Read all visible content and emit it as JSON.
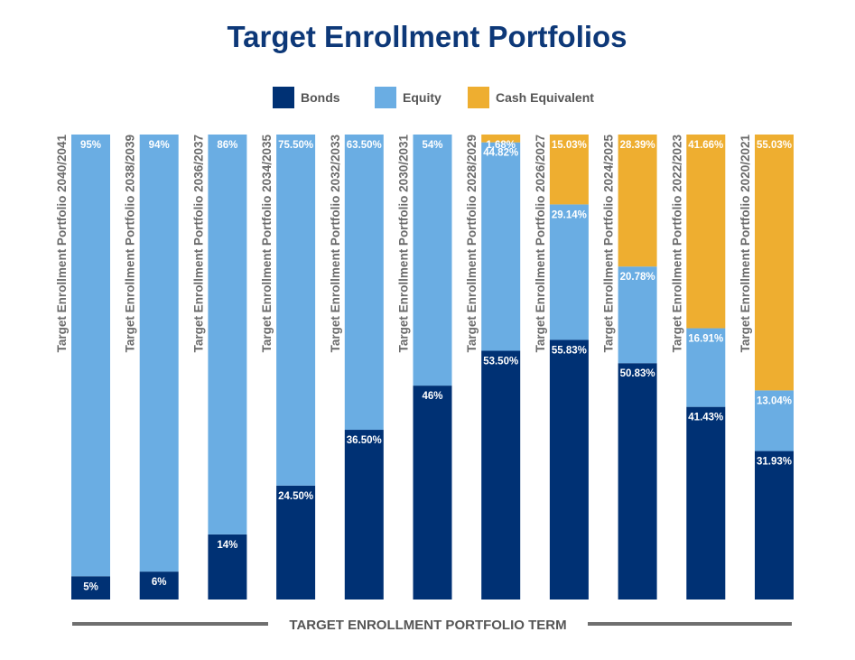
{
  "chart_data": {
    "type": "bar",
    "stacked": true,
    "title": "Target Enrollment Portfolios",
    "xlabel": "TARGET ENROLLMENT PORTFOLIO TERM",
    "ylim": [
      0,
      100
    ],
    "legend_position": "top",
    "categories": [
      "Target Enrollment Portfolio 2040/2041",
      "Target Enrollment Portfolio 2038/2039",
      "Target Enrollment Portfolio 2036/2037",
      "Target Enrollment Portfolio 2034/2035",
      "Target Enrollment Portfolio 2032/2033",
      "Target Enrollment Portfolio 2030/2031",
      "Target Enrollment Portfolio 2028/2029",
      "Target Enrollment Portfolio 2026/2027",
      "Target Enrollment Portfolio 2024/2025",
      "Target Enrollment Portfolio 2022/2023",
      "Target Enrollment Portfolio 2020/2021"
    ],
    "series": [
      {
        "name": "Bonds",
        "color": "#003174",
        "values": [
          5,
          6,
          14,
          24.5,
          36.5,
          46,
          53.5,
          55.83,
          50.83,
          41.43,
          31.93
        ],
        "labels": [
          "5%",
          "6%",
          "14%",
          "24.50%",
          "36.50%",
          "46%",
          "53.50%",
          "55.83%",
          "50.83%",
          "41.43%",
          "31.93%"
        ]
      },
      {
        "name": "Equity",
        "color": "#6aade3",
        "values": [
          95,
          94,
          86,
          75.5,
          63.5,
          54,
          44.82,
          29.14,
          20.78,
          16.91,
          13.04
        ],
        "labels": [
          "95%",
          "94%",
          "86%",
          "75.50%",
          "63.50%",
          "54%",
          "44.82%",
          "29.14%",
          "20.78%",
          "16.91%",
          "13.04%"
        ]
      },
      {
        "name": "Cash Equivalent",
        "color": "#eeae30",
        "values": [
          0,
          0,
          0,
          0,
          0,
          0,
          1.68,
          15.03,
          28.39,
          41.66,
          55.03
        ],
        "labels": [
          "",
          "",
          "",
          "",
          "",
          "",
          "1.68%",
          "15.03%",
          "28.39%",
          "41.66%",
          "55.03%"
        ]
      }
    ]
  }
}
